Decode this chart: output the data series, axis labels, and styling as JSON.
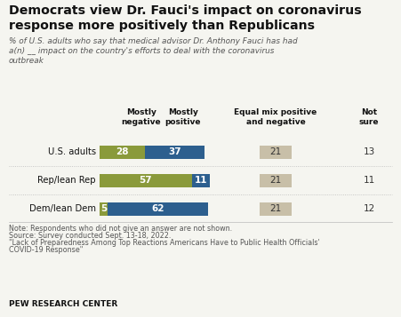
{
  "title": "Democrats view Dr. Fauci's impact on coronavirus\nresponse more positively than Republicans",
  "subtitle": "% of U.S. adults who say that medical advisor Dr. Anthony Fauci has had\na(n) __ impact on the country's efforts to deal with the coronavirus\noutbreak",
  "rows": [
    "U.S. adults",
    "Rep/lean Rep",
    "Dem/lean Dem"
  ],
  "col_headers_neg": "Mostly\nnegative",
  "col_headers_pos": "Mostly\npositive",
  "col_headers_eq": "Equal mix positive\nand negative",
  "col_headers_ns": "Not\nsure",
  "mostly_negative": [
    28,
    57,
    5
  ],
  "mostly_positive": [
    37,
    11,
    62
  ],
  "equal_mix": [
    21,
    21,
    21
  ],
  "not_sure": [
    13,
    11,
    12
  ],
  "color_negative": "#8a9a3b",
  "color_positive": "#2d5f8e",
  "color_equal": "#c8bfa8",
  "note_line1": "Note: Respondents who did not give an answer are not shown.",
  "note_line2": "Source: Survey conducted Sept. 13-18, 2022.",
  "note_line3": "\"Lack of Preparedness Among Top Reactions Americans Have to Public Health Officials'",
  "note_line4": "COVID-19 Response\"",
  "footer": "PEW RESEARCH CENTER",
  "bg_color": "#f5f5f0"
}
